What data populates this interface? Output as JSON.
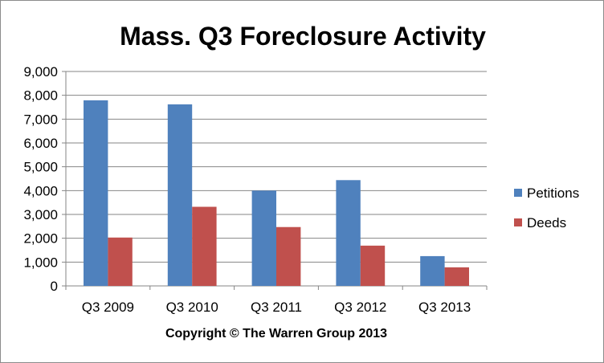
{
  "chart_data": {
    "type": "bar",
    "title": "Mass. Q3 Foreclosure Activity",
    "caption": "Copyright © The Warren Group 2013",
    "categories": [
      "Q3 2009",
      "Q3 2010",
      "Q3 2011",
      "Q3 2012",
      "Q3 2013"
    ],
    "series": [
      {
        "name": "Petitions",
        "color": "#4f81bd",
        "values": [
          7790,
          7620,
          4000,
          4440,
          1250
        ]
      },
      {
        "name": "Deeds",
        "color": "#c0504d",
        "values": [
          2030,
          3320,
          2470,
          1690,
          780
        ]
      }
    ],
    "ylim": [
      0,
      9000
    ],
    "yticks": [
      "0",
      "1,000",
      "2,000",
      "3,000",
      "4,000",
      "5,000",
      "6,000",
      "7,000",
      "8,000",
      "9,000"
    ],
    "grid": true,
    "legend": "right"
  }
}
